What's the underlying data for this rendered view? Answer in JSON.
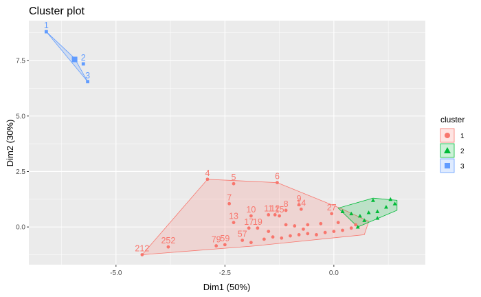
{
  "chart_data": {
    "type": "scatter",
    "title": "Cluster plot",
    "xlabel": "Dim1 (50%)",
    "ylabel": "Dim2 (30%)",
    "xlim": [
      -7.0,
      2.1
    ],
    "ylim": [
      -1.7,
      9.3
    ],
    "xticks": [
      -5.0,
      -2.5,
      0.0
    ],
    "xtick_labels": [
      "-5.0",
      "-2.5",
      "0.0"
    ],
    "yticks": [
      0.0,
      2.5,
      5.0,
      7.5
    ],
    "ytick_labels": [
      "0.0",
      "2.5",
      "5.0",
      "7.5"
    ],
    "grid": true,
    "legend": {
      "title": "cluster",
      "position": "right",
      "entries": [
        {
          "label": "1",
          "color": "#F8766D",
          "shape": "circle"
        },
        {
          "label": "2",
          "color": "#00BA38",
          "shape": "triangle"
        },
        {
          "label": "3",
          "color": "#619CFF",
          "shape": "square"
        }
      ]
    },
    "series": [
      {
        "name": "1",
        "color": "#F8766D",
        "shape": "circle",
        "hull": [
          [
            -4.4,
            -1.25
          ],
          [
            -2.9,
            2.15
          ],
          [
            -1.3,
            2.0
          ],
          [
            0.2,
            0.8
          ],
          [
            0.8,
            0.25
          ],
          [
            0.7,
            -0.35
          ],
          [
            -1.8,
            -0.85
          ]
        ],
        "points": [
          {
            "label": "4",
            "x": -2.9,
            "y": 2.15
          },
          {
            "label": "5",
            "x": -2.3,
            "y": 1.95
          },
          {
            "label": "6",
            "x": -1.3,
            "y": 2.0
          },
          {
            "label": "7",
            "x": -2.4,
            "y": 1.05
          },
          {
            "label": "8",
            "x": -1.1,
            "y": 0.75
          },
          {
            "label": "9",
            "x": -0.8,
            "y": 1.0
          },
          {
            "label": "10",
            "x": -1.9,
            "y": 0.5
          },
          {
            "label": "11",
            "x": -1.5,
            "y": 0.55
          },
          {
            "label": "12",
            "x": -1.35,
            "y": 0.55
          },
          {
            "label": "13",
            "x": -2.3,
            "y": 0.2
          },
          {
            "label": "14",
            "x": -0.75,
            "y": 0.8
          },
          {
            "label": "15",
            "x": -1.25,
            "y": 0.5
          },
          {
            "label": "17",
            "x": -1.95,
            "y": -0.05
          },
          {
            "label": "19",
            "x": -1.75,
            "y": -0.05
          },
          {
            "label": "57",
            "x": -2.1,
            "y": -0.6
          },
          {
            "label": "59",
            "x": -2.5,
            "y": -0.8
          },
          {
            "label": "79",
            "x": -2.7,
            "y": -0.85
          },
          {
            "label": "212",
            "x": -4.4,
            "y": -1.25
          },
          {
            "label": "252",
            "x": -3.8,
            "y": -0.9
          },
          {
            "label": "27",
            "x": -0.05,
            "y": 0.6
          },
          {
            "label": "",
            "x": -1.9,
            "y": -0.7
          },
          {
            "label": "",
            "x": -1.6,
            "y": -0.55
          },
          {
            "label": "",
            "x": -1.4,
            "y": -0.45
          },
          {
            "label": "",
            "x": -1.2,
            "y": -0.5
          },
          {
            "label": "",
            "x": -1.0,
            "y": -0.4
          },
          {
            "label": "",
            "x": -0.8,
            "y": -0.35
          },
          {
            "label": "",
            "x": -0.6,
            "y": -0.3
          },
          {
            "label": "",
            "x": -0.4,
            "y": -0.35
          },
          {
            "label": "",
            "x": -0.2,
            "y": -0.25
          },
          {
            "label": "",
            "x": 0.0,
            "y": -0.2
          },
          {
            "label": "",
            "x": 0.2,
            "y": -0.15
          },
          {
            "label": "",
            "x": 0.4,
            "y": -0.05
          },
          {
            "label": "",
            "x": -1.1,
            "y": 0.1
          },
          {
            "label": "",
            "x": -0.9,
            "y": 0.05
          },
          {
            "label": "",
            "x": -0.6,
            "y": 0.1
          },
          {
            "label": "",
            "x": -0.3,
            "y": 0.15
          },
          {
            "label": "",
            "x": 0.1,
            "y": 0.2
          },
          {
            "label": "",
            "x": 0.5,
            "y": 0.1
          },
          {
            "label": "",
            "x": -1.5,
            "y": -0.2
          },
          {
            "label": "",
            "x": -0.7,
            "y": -0.1
          }
        ]
      },
      {
        "name": "2",
        "color": "#00BA38",
        "shape": "triangle",
        "hull": [
          [
            0.1,
            0.85
          ],
          [
            0.9,
            1.3
          ],
          [
            1.45,
            1.2
          ],
          [
            1.45,
            0.75
          ],
          [
            0.55,
            0.0
          ]
        ],
        "points": [
          {
            "label": "",
            "x": 0.2,
            "y": 0.7
          },
          {
            "label": "",
            "x": 0.4,
            "y": 0.6
          },
          {
            "label": "",
            "x": 0.6,
            "y": 0.5
          },
          {
            "label": "",
            "x": 0.8,
            "y": 0.65
          },
          {
            "label": "",
            "x": 1.0,
            "y": 0.7
          },
          {
            "label": "",
            "x": 1.2,
            "y": 0.9
          },
          {
            "label": "",
            "x": 1.4,
            "y": 1.05
          },
          {
            "label": "",
            "x": 0.9,
            "y": 1.2
          },
          {
            "label": "",
            "x": 1.3,
            "y": 1.25
          },
          {
            "label": "",
            "x": 0.55,
            "y": 0.0
          },
          {
            "label": "",
            "x": 0.7,
            "y": 0.3
          },
          {
            "label": "",
            "x": 1.0,
            "y": 0.4
          }
        ]
      },
      {
        "name": "3",
        "color": "#619CFF",
        "shape": "square",
        "hull": [
          [
            -6.6,
            8.8
          ],
          [
            -5.95,
            7.6
          ],
          [
            -5.65,
            6.55
          ]
        ],
        "points": [
          {
            "label": "1",
            "x": -6.6,
            "y": 8.8
          },
          {
            "label": "2",
            "x": -5.75,
            "y": 7.35
          },
          {
            "label": "3",
            "x": -5.65,
            "y": 6.55
          }
        ],
        "center": {
          "x": -5.95,
          "y": 7.55
        }
      }
    ]
  }
}
